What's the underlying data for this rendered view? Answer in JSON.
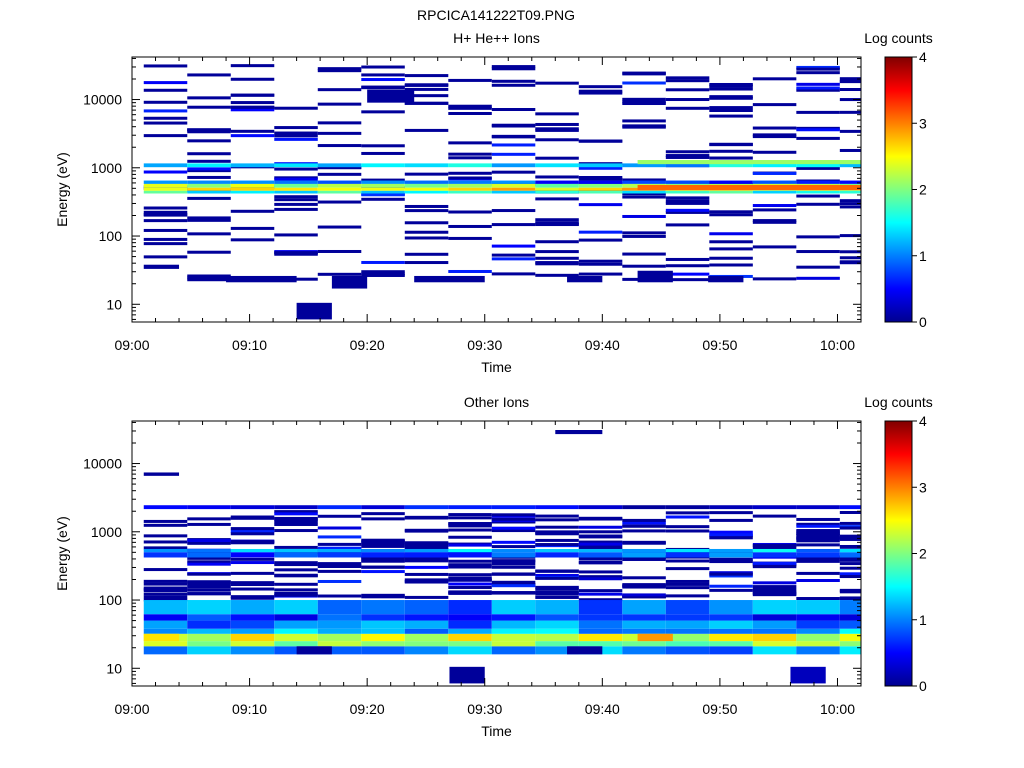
{
  "figure_title": "RPCICA141222T09.PNG",
  "chart_data": [
    {
      "type": "heatmap",
      "title": "H+ He++ Ions",
      "xlabel": "Time",
      "ylabel": "Energy (eV)",
      "x_ticks": [
        "09:00",
        "09:10",
        "09:20",
        "09:30",
        "09:40",
        "09:50",
        "10:00"
      ],
      "x_range": [
        "09:00",
        "10:02"
      ],
      "y_ticks": [
        "10",
        "100",
        "1000",
        "10000"
      ],
      "y_range": [
        5.5,
        42000
      ],
      "y_scale": "log",
      "colorbar": {
        "label": "Log counts",
        "ticks": [
          "0",
          "1",
          "2",
          "3",
          "4"
        ],
        "range": [
          0,
          4
        ]
      },
      "bands": [
        {
          "energy_range": [
            1020,
            1160
          ],
          "value": 1.3
        },
        {
          "energy_range": [
            580,
            650
          ],
          "value": 0.8
        },
        {
          "energy_range": [
            510,
            580
          ],
          "value": 2.2
        },
        {
          "energy_range": [
            460,
            510
          ],
          "value": 2.6
        },
        {
          "energy_range": [
            420,
            460
          ],
          "value": 1.6
        }
      ],
      "noise_energy_range": [
        22,
        32000
      ],
      "noise_value": 0.05,
      "patches": [
        {
          "time_range": [
            "09:01",
            "09:04"
          ],
          "energy_range": [
            33,
            38
          ],
          "value": 0.05
        },
        {
          "time_range": [
            "09:08",
            "09:14"
          ],
          "energy_range": [
            21,
            26
          ],
          "value": 0.05
        },
        {
          "time_range": [
            "09:14",
            "09:17"
          ],
          "energy_range": [
            6,
            10.5
          ],
          "value": 0.05
        },
        {
          "time_range": [
            "09:17",
            "09:20"
          ],
          "energy_range": [
            17,
            26
          ],
          "value": 0.05
        },
        {
          "time_range": [
            "09:20",
            "09:24"
          ],
          "energy_range": [
            9000,
            14000
          ],
          "value": 0.05
        },
        {
          "time_range": [
            "09:24",
            "09:30"
          ],
          "energy_range": [
            21,
            26
          ],
          "value": 0.05
        },
        {
          "time_range": [
            "09:37",
            "09:40"
          ],
          "energy_range": [
            21,
            26
          ],
          "value": 0.05
        },
        {
          "time_range": [
            "09:43",
            "09:46"
          ],
          "energy_range": [
            21,
            31
          ],
          "value": 0.05
        },
        {
          "time_range": [
            "09:49",
            "09:52"
          ],
          "energy_range": [
            21,
            26
          ],
          "value": 0.05
        },
        {
          "time_range": [
            "09:43",
            "10:02"
          ],
          "energy_range": [
            1130,
            1300
          ],
          "value": 2.1
        },
        {
          "time_range": [
            "09:43",
            "10:02"
          ],
          "energy_range": [
            470,
            560
          ],
          "value": 3.1
        }
      ]
    },
    {
      "type": "heatmap",
      "title": "Other Ions",
      "xlabel": "Time",
      "ylabel": "Energy (eV)",
      "x_ticks": [
        "09:00",
        "09:10",
        "09:20",
        "09:30",
        "09:40",
        "09:50",
        "10:00"
      ],
      "x_range": [
        "09:00",
        "10:02"
      ],
      "y_ticks": [
        "10",
        "100",
        "1000",
        "10000"
      ],
      "y_range": [
        5.5,
        42000
      ],
      "y_scale": "log",
      "colorbar": {
        "label": "Log counts",
        "ticks": [
          "0",
          "1",
          "2",
          "3",
          "4"
        ],
        "range": [
          0,
          4
        ]
      },
      "bands": [
        {
          "energy_range": [
            2150,
            2450
          ],
          "value": 0.4
        },
        {
          "energy_range": [
            500,
            560
          ],
          "value": 1.2
        },
        {
          "energy_range": [
            420,
            500
          ],
          "value": 0.8
        },
        {
          "energy_range": [
            16,
            21
          ],
          "value": 1.1
        },
        {
          "energy_range": [
            21,
            25
          ],
          "value": 2.1
        },
        {
          "energy_range": [
            25,
            32
          ],
          "value": 2.4
        },
        {
          "energy_range": [
            32,
            38
          ],
          "value": 1.2
        },
        {
          "energy_range": [
            38,
            50
          ],
          "value": 1.0
        },
        {
          "energy_range": [
            50,
            62
          ],
          "value": 0.6
        },
        {
          "energy_range": [
            62,
            100
          ],
          "value": 1.0
        }
      ],
      "noise_energy_range": [
        100,
        2000
      ],
      "noise_value": 0.05,
      "patches": [
        {
          "time_range": [
            "09:01",
            "09:04"
          ],
          "energy_range": [
            6600,
            7400
          ],
          "value": 0.05
        },
        {
          "time_range": [
            "09:36",
            "09:40"
          ],
          "energy_range": [
            27000,
            31000
          ],
          "value": 0.05
        },
        {
          "time_range": [
            "09:27",
            "09:30"
          ],
          "energy_range": [
            6,
            10.5
          ],
          "value": 0.05
        },
        {
          "time_range": [
            "09:56",
            "09:59"
          ],
          "energy_range": [
            6,
            10.5
          ],
          "value": 0.2
        },
        {
          "time_range": [
            "09:43",
            "09:46"
          ],
          "energy_range": [
            25,
            32
          ],
          "value": 2.9
        },
        {
          "time_range": [
            "09:01",
            "09:04"
          ],
          "energy_range": [
            25,
            32
          ],
          "value": 2.6
        },
        {
          "time_range": [
            "09:14",
            "09:17"
          ],
          "energy_range": [
            16,
            21
          ],
          "value": 0.05
        },
        {
          "time_range": [
            "09:37",
            "09:40"
          ],
          "energy_range": [
            16,
            21
          ],
          "value": 0.05
        }
      ]
    }
  ]
}
